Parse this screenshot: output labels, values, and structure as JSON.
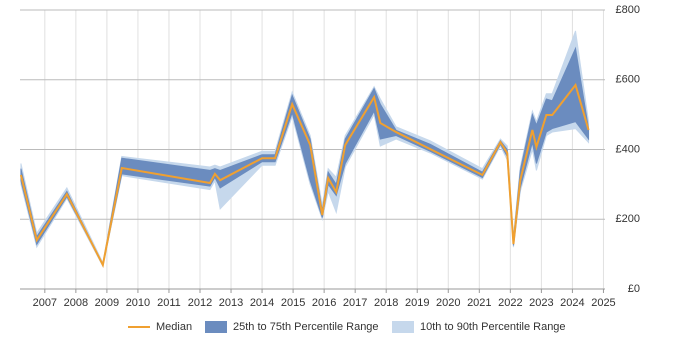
{
  "chart_data": {
    "type": "line",
    "x": [
      2006.23,
      2006.74,
      2007.71,
      2008.87,
      2009.48,
      2012.32,
      2012.48,
      2012.65,
      2014.0,
      2014.42,
      2014.97,
      2015.55,
      2015.94,
      2016.13,
      2016.39,
      2016.68,
      2017.61,
      2017.81,
      2018.32,
      2019.42,
      2021.1,
      2021.68,
      2021.9,
      2022.1,
      2022.32,
      2022.71,
      2022.84,
      2023.16,
      2023.35,
      2024.1,
      2024.52
    ],
    "series": [
      {
        "name": "Median",
        "color": "#f0a030",
        "values": [
          327,
          140,
          272,
          69,
          347,
          304,
          330,
          312,
          375,
          375,
          530,
          413,
          212,
          318,
          278,
          413,
          550,
          476,
          450,
          401,
          327,
          421,
          390,
          129,
          312,
          456,
          407,
          499,
          499,
          585,
          456
        ]
      },
      {
        "name": "25th to 75th Percentile Range",
        "color": "#6b8cbf",
        "low": [
          310,
          128,
          265,
          69,
          330,
          295,
          320,
          290,
          365,
          365,
          505,
          310,
          205,
          300,
          268,
          360,
          510,
          430,
          440,
          395,
          320,
          415,
          380,
          125,
          290,
          420,
          360,
          450,
          460,
          480,
          430
        ],
        "high": [
          345,
          150,
          280,
          69,
          375,
          340,
          345,
          340,
          385,
          385,
          555,
          430,
          225,
          335,
          300,
          430,
          575,
          530,
          455,
          415,
          335,
          425,
          400,
          140,
          340,
          500,
          470,
          545,
          540,
          690,
          460
        ]
      },
      {
        "name": "10th to 90th Percentile Range",
        "color": "#c6d8ec",
        "low": [
          300,
          120,
          260,
          65,
          325,
          285,
          310,
          230,
          355,
          355,
          495,
          300,
          200,
          280,
          220,
          350,
          500,
          410,
          430,
          390,
          315,
          410,
          370,
          120,
          280,
          400,
          340,
          440,
          450,
          460,
          420
        ],
        "high": [
          360,
          160,
          290,
          75,
          380,
          350,
          355,
          350,
          395,
          395,
          565,
          440,
          240,
          345,
          320,
          440,
          580,
          545,
          465,
          425,
          345,
          430,
          410,
          150,
          350,
          510,
          480,
          560,
          560,
          740,
          480
        ]
      }
    ],
    "xlim": [
      2006.2,
      2025.05
    ],
    "xticks": [
      2007,
      2008,
      2009,
      2010,
      2011,
      2012,
      2013,
      2014,
      2015,
      2016,
      2017,
      2018,
      2019,
      2020,
      2021,
      2022,
      2023,
      2024,
      2025
    ],
    "ylim": [
      0,
      800
    ],
    "yticks": [
      {
        "value": 0,
        "label": "£0"
      },
      {
        "value": 200,
        "label": "£200"
      },
      {
        "value": 400,
        "label": "£400"
      },
      {
        "value": 600,
        "label": "£600"
      },
      {
        "value": 800,
        "label": "£800"
      }
    ],
    "grid": true
  }
}
